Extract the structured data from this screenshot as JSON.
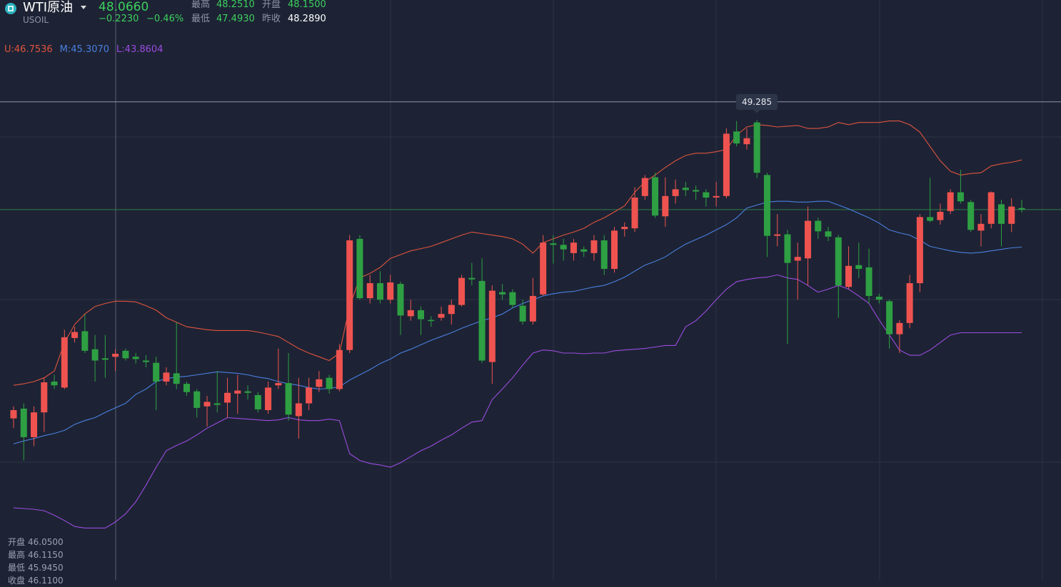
{
  "header": {
    "name": "WTI原油",
    "symbol": "USOIL",
    "price": "48.0660",
    "change": "−0.2230",
    "change_pct": "−0.46%",
    "stats": [
      {
        "name": "最高",
        "value": "48.2510"
      },
      {
        "name": "开盘",
        "value": "48.1500"
      },
      {
        "name": "最低",
        "value": "47.4930"
      },
      {
        "name": "昨收",
        "value": "48.2890"
      }
    ]
  },
  "chart_data": {
    "type": "candlestick",
    "up_color": "#ef5350",
    "down_color": "#2ea043",
    "ylim": [
      42.92,
      50.64
    ],
    "crosshair_price": 49.285,
    "open": [
      45.07,
      45.2,
      44.82,
      45.15,
      45.56,
      45.48,
      46.14,
      46.23,
      45.99,
      45.87,
      45.89,
      45.97,
      45.89,
      45.84,
      45.81,
      45.56,
      45.67,
      45.53,
      45.43,
      45.23,
      45.27,
      45.28,
      45.4,
      45.43,
      45.38,
      45.18,
      45.51,
      45.54,
      45.1,
      45.27,
      45.49,
      45.61,
      45.46,
      45.98,
      47.46,
      46.67,
      46.87,
      46.65,
      46.86,
      46.43,
      46.51,
      46.38,
      46.41,
      46.46,
      46.58,
      46.94,
      46.9,
      45.82,
      46.75,
      46.75,
      46.57,
      46.36,
      46.72,
      47.4,
      47.38,
      47.27,
      47.32,
      47.27,
      47.44,
      47.06,
      47.59,
      47.6,
      48.03,
      48.28,
      47.76,
      48.03,
      48.14,
      48.11,
      48.08,
      48.01,
      48.03,
      48.89,
      48.72,
      49.01,
      48.31,
      47.5,
      47.52,
      47.17,
      47.2,
      47.7,
      47.56,
      47.48,
      46.82,
      47.11,
      47.08,
      46.69,
      46.63,
      46.19,
      46.34,
      46.87,
      47.75,
      47.71,
      47.83,
      48.08,
      47.95,
      47.57,
      47.66,
      47.92,
      47.66,
      47.87
    ],
    "high": [
      45.23,
      45.27,
      45.23,
      45.61,
      45.65,
      46.25,
      46.29,
      46.46,
      46.18,
      46.18,
      45.99,
      46.0,
      45.94,
      45.91,
      45.89,
      45.75,
      46.35,
      45.56,
      45.46,
      45.37,
      45.7,
      45.61,
      45.65,
      45.51,
      45.42,
      45.56,
      46.0,
      45.94,
      45.61,
      45.61,
      45.7,
      45.65,
      46.06,
      47.51,
      47.51,
      46.98,
      47.03,
      46.98,
      46.89,
      46.65,
      46.56,
      46.43,
      46.56,
      46.65,
      46.98,
      47.14,
      47.2,
      46.84,
      46.86,
      46.79,
      46.65,
      46.94,
      47.51,
      47.51,
      47.46,
      47.46,
      47.36,
      47.51,
      47.51,
      47.62,
      47.68,
      48.15,
      48.31,
      48.34,
      48.28,
      48.25,
      48.22,
      48.17,
      48.12,
      48.22,
      48.93,
      49.03,
      48.93,
      49.04,
      48.34,
      47.79,
      47.58,
      47.41,
      47.89,
      47.74,
      47.62,
      47.51,
      47.36,
      47.41,
      47.33,
      46.73,
      46.65,
      46.38,
      46.98,
      47.79,
      48.27,
      47.93,
      48.12,
      48.38,
      47.98,
      47.79,
      48.09,
      47.98,
      48.0,
      47.98
    ],
    "low": [
      44.94,
      44.51,
      44.7,
      44.89,
      45.46,
      45.46,
      46.08,
      45.94,
      45.56,
      45.61,
      45.7,
      45.84,
      45.8,
      45.75,
      45.18,
      45.51,
      45.46,
      45.37,
      45.08,
      44.96,
      45.15,
      45.08,
      45.13,
      45.32,
      45.15,
      45.13,
      45.46,
      45.04,
      44.8,
      45.18,
      45.42,
      45.4,
      45.43,
      45.94,
      46.65,
      46.6,
      46.6,
      46.6,
      46.18,
      46.37,
      46.18,
      46.29,
      46.37,
      46.32,
      46.56,
      46.84,
      45.81,
      45.53,
      46.65,
      46.54,
      46.32,
      46.32,
      46.7,
      47.13,
      47.17,
      47.17,
      47.22,
      47.17,
      46.98,
      47.01,
      47.49,
      47.55,
      47.98,
      47.74,
      47.62,
      47.93,
      48.03,
      47.98,
      47.89,
      47.89,
      48.0,
      48.69,
      48.65,
      48.27,
      47.22,
      47.36,
      46.06,
      46.65,
      46.84,
      47.46,
      47.43,
      46.41,
      46.79,
      46.94,
      46.6,
      46.6,
      46.0,
      45.94,
      46.27,
      46.75,
      47.68,
      47.65,
      47.79,
      47.93,
      47.55,
      47.36,
      47.6,
      47.36,
      47.55,
      47.81
    ],
    "close": [
      45.18,
      44.82,
      45.15,
      45.55,
      45.51,
      46.15,
      46.22,
      45.97,
      45.84,
      45.85,
      45.93,
      45.87,
      45.86,
      45.82,
      45.56,
      45.68,
      45.53,
      45.42,
      45.21,
      45.29,
      45.25,
      45.41,
      45.44,
      45.41,
      45.19,
      45.48,
      45.54,
      45.12,
      45.27,
      45.48,
      45.59,
      45.46,
      45.98,
      47.44,
      46.67,
      46.87,
      46.65,
      46.88,
      46.44,
      46.51,
      46.39,
      46.37,
      46.46,
      46.58,
      46.94,
      46.92,
      45.84,
      46.77,
      46.72,
      46.58,
      46.36,
      46.7,
      47.41,
      47.38,
      47.32,
      47.41,
      47.29,
      47.44,
      47.06,
      47.57,
      47.62,
      48.01,
      48.27,
      47.77,
      48.03,
      48.12,
      48.11,
      48.09,
      48.01,
      48.03,
      48.86,
      48.73,
      48.8,
      48.34,
      47.5,
      47.52,
      47.14,
      47.22,
      47.7,
      47.56,
      47.49,
      46.84,
      47.1,
      47.06,
      46.7,
      46.65,
      46.19,
      46.34,
      46.87,
      47.75,
      47.7,
      47.82,
      48.08,
      47.96,
      47.58,
      47.66,
      48.08,
      47.66,
      47.89,
      47.85
    ],
    "bands": [
      {
        "name": "U:",
        "readout": "46.7536",
        "color": "#e0533f",
        "values": [
          45.51,
          45.53,
          45.56,
          45.61,
          45.7,
          46.08,
          46.32,
          46.46,
          46.56,
          46.6,
          46.63,
          46.63,
          46.62,
          46.57,
          46.51,
          46.41,
          46.35,
          46.29,
          46.27,
          46.25,
          46.24,
          46.24,
          46.24,
          46.24,
          46.22,
          46.19,
          46.16,
          46.08,
          46.0,
          45.94,
          45.89,
          45.84,
          45.94,
          46.56,
          46.94,
          47.0,
          47.08,
          47.2,
          47.25,
          47.3,
          47.33,
          47.36,
          47.41,
          47.46,
          47.51,
          47.55,
          47.53,
          47.51,
          47.49,
          47.46,
          47.39,
          47.27,
          47.41,
          47.46,
          47.51,
          47.55,
          47.6,
          47.68,
          47.74,
          47.82,
          47.9,
          48.08,
          48.22,
          48.31,
          48.41,
          48.5,
          48.57,
          48.6,
          48.6,
          48.62,
          48.65,
          48.84,
          48.95,
          48.98,
          48.97,
          48.95,
          48.96,
          48.97,
          48.93,
          48.93,
          48.95,
          49.01,
          48.98,
          49.01,
          49.01,
          49.01,
          49.03,
          49.03,
          48.98,
          48.88,
          48.69,
          48.5,
          48.36,
          48.31,
          48.33,
          48.34,
          48.43,
          48.46,
          48.48,
          48.51
        ]
      },
      {
        "name": "M:",
        "readout": "45.3070",
        "color": "#4a7fe0",
        "values": [
          44.73,
          44.77,
          44.8,
          44.84,
          44.87,
          44.91,
          44.99,
          45.04,
          45.08,
          45.15,
          45.21,
          45.27,
          45.39,
          45.46,
          45.56,
          45.6,
          45.62,
          45.63,
          45.65,
          45.67,
          45.69,
          45.68,
          45.67,
          45.65,
          45.62,
          45.6,
          45.56,
          45.53,
          45.51,
          45.48,
          45.46,
          45.47,
          45.49,
          45.58,
          45.65,
          45.72,
          45.8,
          45.86,
          45.94,
          45.99,
          46.05,
          46.11,
          46.16,
          46.21,
          46.27,
          46.32,
          46.37,
          46.41,
          46.46,
          46.54,
          46.6,
          46.65,
          46.7,
          46.73,
          46.75,
          46.76,
          46.79,
          46.82,
          46.84,
          46.89,
          46.95,
          47.03,
          47.11,
          47.16,
          47.22,
          47.31,
          47.39,
          47.45,
          47.51,
          47.58,
          47.65,
          47.74,
          47.87,
          47.91,
          47.95,
          47.96,
          47.96,
          47.95,
          47.95,
          47.96,
          47.96,
          47.91,
          47.86,
          47.8,
          47.74,
          47.67,
          47.58,
          47.54,
          47.51,
          47.44,
          47.36,
          47.33,
          47.3,
          47.28,
          47.27,
          47.28,
          47.3,
          47.32,
          47.34,
          47.35
        ]
      },
      {
        "name": "L:",
        "readout": "43.8604",
        "color": "#9b4be0",
        "values": [
          43.88,
          43.87,
          43.86,
          43.84,
          43.78,
          43.71,
          43.63,
          43.61,
          43.61,
          43.61,
          43.69,
          43.8,
          43.96,
          44.18,
          44.42,
          44.64,
          44.71,
          44.77,
          44.85,
          44.94,
          45.01,
          45.08,
          45.07,
          45.06,
          45.05,
          45.04,
          45.05,
          45.08,
          45.05,
          45.04,
          45.04,
          45.06,
          45.04,
          44.6,
          44.51,
          44.47,
          44.45,
          44.42,
          44.48,
          44.56,
          44.64,
          44.7,
          44.78,
          44.85,
          44.94,
          45.02,
          45.04,
          45.32,
          45.46,
          45.61,
          45.78,
          45.94,
          45.98,
          45.97,
          45.94,
          45.94,
          45.93,
          45.94,
          45.94,
          45.97,
          45.98,
          45.99,
          46.0,
          46.02,
          46.04,
          46.04,
          46.29,
          46.37,
          46.5,
          46.65,
          46.79,
          46.89,
          46.92,
          46.94,
          46.95,
          46.98,
          46.94,
          46.92,
          46.84,
          46.75,
          46.79,
          46.84,
          46.79,
          46.7,
          46.6,
          46.38,
          46.18,
          45.98,
          45.91,
          45.91,
          45.98,
          46.08,
          46.18,
          46.21,
          46.21,
          46.21,
          46.21,
          46.21,
          46.21,
          46.21
        ]
      }
    ],
    "ohlc_readout": [
      {
        "name": "开盘",
        "value": "46.0500"
      },
      {
        "name": "最高",
        "value": "46.1150"
      },
      {
        "name": "最低",
        "value": "45.9450"
      },
      {
        "name": "收盘",
        "value": "46.1100"
      }
    ]
  }
}
